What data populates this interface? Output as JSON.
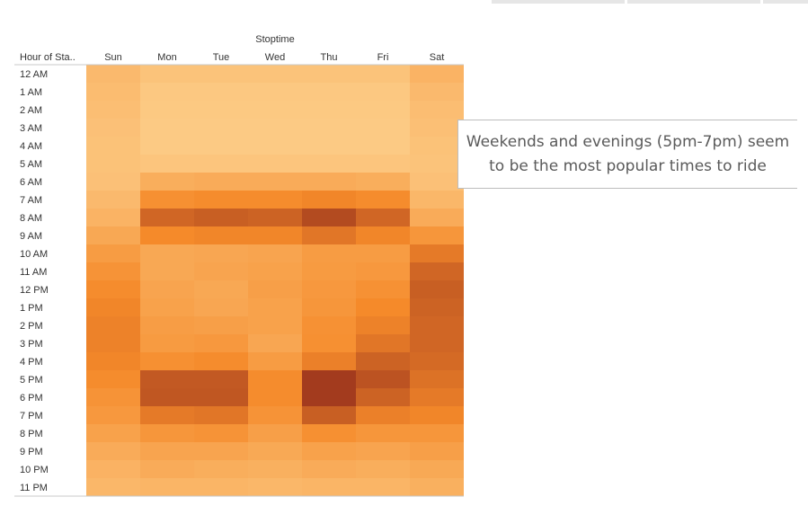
{
  "window": {
    "tabs_visible": 3
  },
  "annotation": {
    "text": "Weekends and evenings (5pm-7pm) seem to be the most popular times to ride"
  },
  "chart_data": {
    "type": "heatmap",
    "column_header": "Stoptime",
    "row_header": "Hour of Sta..",
    "columns": [
      "Sun",
      "Mon",
      "Tue",
      "Wed",
      "Thu",
      "Fri",
      "Sat"
    ],
    "rows": [
      "12 AM",
      "1 AM",
      "2 AM",
      "3 AM",
      "4 AM",
      "5 AM",
      "6 AM",
      "7 AM",
      "8 AM",
      "9 AM",
      "10 AM",
      "11 AM",
      "12 PM",
      "1 PM",
      "2 PM",
      "3 PM",
      "4 PM",
      "5 PM",
      "6 PM",
      "7 PM",
      "8 PM",
      "9 PM",
      "10 PM",
      "11 PM"
    ],
    "values": [
      [
        0.2,
        0.12,
        0.12,
        0.12,
        0.12,
        0.12,
        0.25
      ],
      [
        0.18,
        0.08,
        0.08,
        0.08,
        0.08,
        0.08,
        0.2
      ],
      [
        0.16,
        0.07,
        0.07,
        0.07,
        0.07,
        0.07,
        0.17
      ],
      [
        0.14,
        0.06,
        0.06,
        0.06,
        0.06,
        0.06,
        0.15
      ],
      [
        0.13,
        0.06,
        0.06,
        0.06,
        0.06,
        0.06,
        0.13
      ],
      [
        0.13,
        0.1,
        0.1,
        0.1,
        0.1,
        0.1,
        0.12
      ],
      [
        0.14,
        0.3,
        0.32,
        0.32,
        0.32,
        0.3,
        0.14
      ],
      [
        0.2,
        0.55,
        0.58,
        0.58,
        0.62,
        0.58,
        0.22
      ],
      [
        0.25,
        0.78,
        0.82,
        0.8,
        0.92,
        0.78,
        0.32
      ],
      [
        0.35,
        0.6,
        0.62,
        0.62,
        0.7,
        0.62,
        0.5
      ],
      [
        0.45,
        0.35,
        0.36,
        0.38,
        0.45,
        0.45,
        0.68
      ],
      [
        0.52,
        0.35,
        0.38,
        0.4,
        0.46,
        0.48,
        0.78
      ],
      [
        0.58,
        0.38,
        0.35,
        0.42,
        0.48,
        0.54,
        0.82
      ],
      [
        0.62,
        0.4,
        0.36,
        0.4,
        0.5,
        0.6,
        0.8
      ],
      [
        0.64,
        0.44,
        0.42,
        0.4,
        0.54,
        0.64,
        0.78
      ],
      [
        0.64,
        0.46,
        0.48,
        0.36,
        0.55,
        0.7,
        0.78
      ],
      [
        0.62,
        0.55,
        0.58,
        0.45,
        0.65,
        0.8,
        0.76
      ],
      [
        0.58,
        0.85,
        0.85,
        0.58,
        1.0,
        0.88,
        0.72
      ],
      [
        0.52,
        0.86,
        0.86,
        0.58,
        1.0,
        0.8,
        0.68
      ],
      [
        0.48,
        0.68,
        0.7,
        0.52,
        0.82,
        0.65,
        0.62
      ],
      [
        0.4,
        0.5,
        0.52,
        0.42,
        0.55,
        0.5,
        0.5
      ],
      [
        0.32,
        0.38,
        0.38,
        0.34,
        0.4,
        0.38,
        0.42
      ],
      [
        0.26,
        0.32,
        0.3,
        0.28,
        0.32,
        0.3,
        0.34
      ],
      [
        0.22,
        0.24,
        0.24,
        0.22,
        0.24,
        0.24,
        0.28
      ]
    ],
    "scale": "normalized ride count",
    "color_low": "#fdd18e",
    "color_mid": "#f58a2a",
    "color_high": "#a33b1e",
    "legend": "none",
    "grid": false
  }
}
